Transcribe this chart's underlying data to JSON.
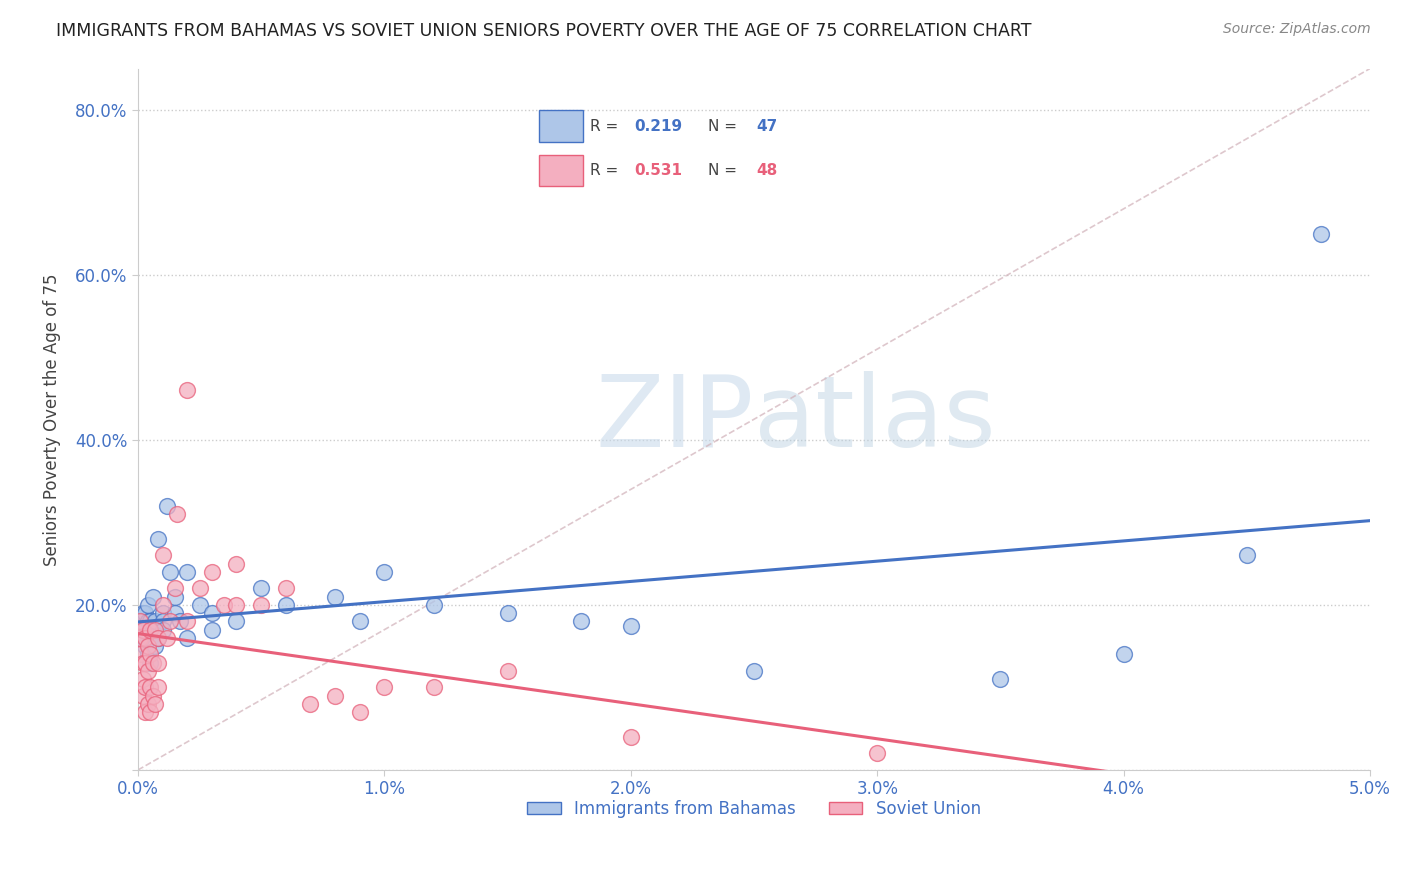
{
  "title": "IMMIGRANTS FROM BAHAMAS VS SOVIET UNION SENIORS POVERTY OVER THE AGE OF 75 CORRELATION CHART",
  "source": "Source: ZipAtlas.com",
  "ylabel": "Seniors Poverty Over the Age of 75",
  "xlim": [
    0.0,
    0.05
  ],
  "ylim": [
    0.0,
    0.85
  ],
  "xticks": [
    0.0,
    0.01,
    0.02,
    0.03,
    0.04,
    0.05
  ],
  "xticklabels": [
    "0.0%",
    "1.0%",
    "2.0%",
    "3.0%",
    "4.0%",
    "5.0%"
  ],
  "yticks": [
    0.0,
    0.2,
    0.4,
    0.6,
    0.8
  ],
  "yticklabels": [
    "",
    "20.0%",
    "40.0%",
    "60.0%",
    "80.0%"
  ],
  "bahamas_R": 0.219,
  "bahamas_N": 47,
  "soviet_R": 0.531,
  "soviet_N": 48,
  "bahamas_color": "#aec6e8",
  "soviet_color": "#f4afc0",
  "bahamas_line_color": "#4472c4",
  "soviet_line_color": "#e8607a",
  "watermark_zip": "ZIP",
  "watermark_atlas": "atlas",
  "legend_label_bahamas": "Immigrants from Bahamas",
  "legend_label_soviet": "Soviet Union",
  "bahamas_x": [
    0.0001,
    0.0001,
    0.0002,
    0.0002,
    0.0003,
    0.0003,
    0.0003,
    0.0004,
    0.0004,
    0.0004,
    0.0005,
    0.0005,
    0.0005,
    0.0006,
    0.0006,
    0.0007,
    0.0007,
    0.0008,
    0.0008,
    0.001,
    0.001,
    0.001,
    0.0012,
    0.0013,
    0.0015,
    0.0015,
    0.0017,
    0.002,
    0.002,
    0.0025,
    0.003,
    0.003,
    0.004,
    0.005,
    0.006,
    0.008,
    0.009,
    0.01,
    0.012,
    0.015,
    0.018,
    0.02,
    0.025,
    0.035,
    0.04,
    0.045,
    0.048
  ],
  "bahamas_y": [
    0.18,
    0.16,
    0.17,
    0.19,
    0.15,
    0.17,
    0.19,
    0.14,
    0.18,
    0.2,
    0.13,
    0.16,
    0.18,
    0.17,
    0.21,
    0.15,
    0.18,
    0.16,
    0.28,
    0.19,
    0.18,
    0.17,
    0.32,
    0.24,
    0.21,
    0.19,
    0.18,
    0.24,
    0.16,
    0.2,
    0.19,
    0.17,
    0.18,
    0.22,
    0.2,
    0.21,
    0.18,
    0.24,
    0.2,
    0.19,
    0.18,
    0.175,
    0.12,
    0.11,
    0.14,
    0.26,
    0.65
  ],
  "soviet_x": [
    0.0001,
    0.0001,
    0.0001,
    0.0002,
    0.0002,
    0.0002,
    0.0002,
    0.0003,
    0.0003,
    0.0003,
    0.0003,
    0.0004,
    0.0004,
    0.0004,
    0.0005,
    0.0005,
    0.0005,
    0.0005,
    0.0006,
    0.0006,
    0.0007,
    0.0007,
    0.0008,
    0.0008,
    0.0008,
    0.001,
    0.001,
    0.0012,
    0.0013,
    0.0015,
    0.0016,
    0.002,
    0.002,
    0.0025,
    0.003,
    0.0035,
    0.004,
    0.004,
    0.005,
    0.006,
    0.007,
    0.008,
    0.009,
    0.01,
    0.012,
    0.015,
    0.02,
    0.03
  ],
  "soviet_y": [
    0.14,
    0.16,
    0.18,
    0.09,
    0.11,
    0.13,
    0.17,
    0.07,
    0.1,
    0.13,
    0.16,
    0.08,
    0.12,
    0.15,
    0.07,
    0.1,
    0.14,
    0.17,
    0.09,
    0.13,
    0.08,
    0.17,
    0.1,
    0.13,
    0.16,
    0.2,
    0.26,
    0.16,
    0.18,
    0.22,
    0.31,
    0.18,
    0.46,
    0.22,
    0.24,
    0.2,
    0.2,
    0.25,
    0.2,
    0.22,
    0.08,
    0.09,
    0.07,
    0.1,
    0.1,
    0.12,
    0.04,
    0.02
  ]
}
